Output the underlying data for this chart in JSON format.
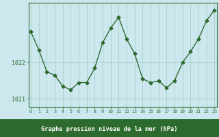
{
  "hours": [
    0,
    1,
    2,
    3,
    4,
    5,
    6,
    7,
    8,
    9,
    10,
    11,
    12,
    13,
    14,
    15,
    16,
    17,
    18,
    19,
    20,
    21,
    22,
    23
  ],
  "pressure": [
    1022.85,
    1022.35,
    1021.75,
    1021.65,
    1021.35,
    1021.25,
    1021.45,
    1021.45,
    1021.85,
    1022.55,
    1022.95,
    1023.25,
    1022.65,
    1022.25,
    1021.55,
    1021.45,
    1021.5,
    1021.3,
    1021.5,
    1022.0,
    1022.3,
    1022.65,
    1023.15,
    1023.45
  ],
  "line_color": "#2d6a2d",
  "marker": "D",
  "marker_size": 2.5,
  "background_color": "#cce8ee",
  "grid_color": "#aacccc",
  "xlabel": "Graphe pression niveau de la mer (hPa)",
  "xlabel_color": "#ffffff",
  "ytick_labels": [
    "1021",
    "1022"
  ],
  "ytick_values": [
    1021.0,
    1022.0
  ],
  "ylim": [
    1020.78,
    1023.65
  ],
  "xlim": [
    -0.3,
    23.3
  ],
  "tick_color": "#2d6a2d",
  "spine_color": "#2d6a2d",
  "bottom_bar_color": "#2d6a2d",
  "xtick_fontsize": 4.8,
  "ytick_fontsize": 6.0,
  "xlabel_fontsize": 6.2
}
